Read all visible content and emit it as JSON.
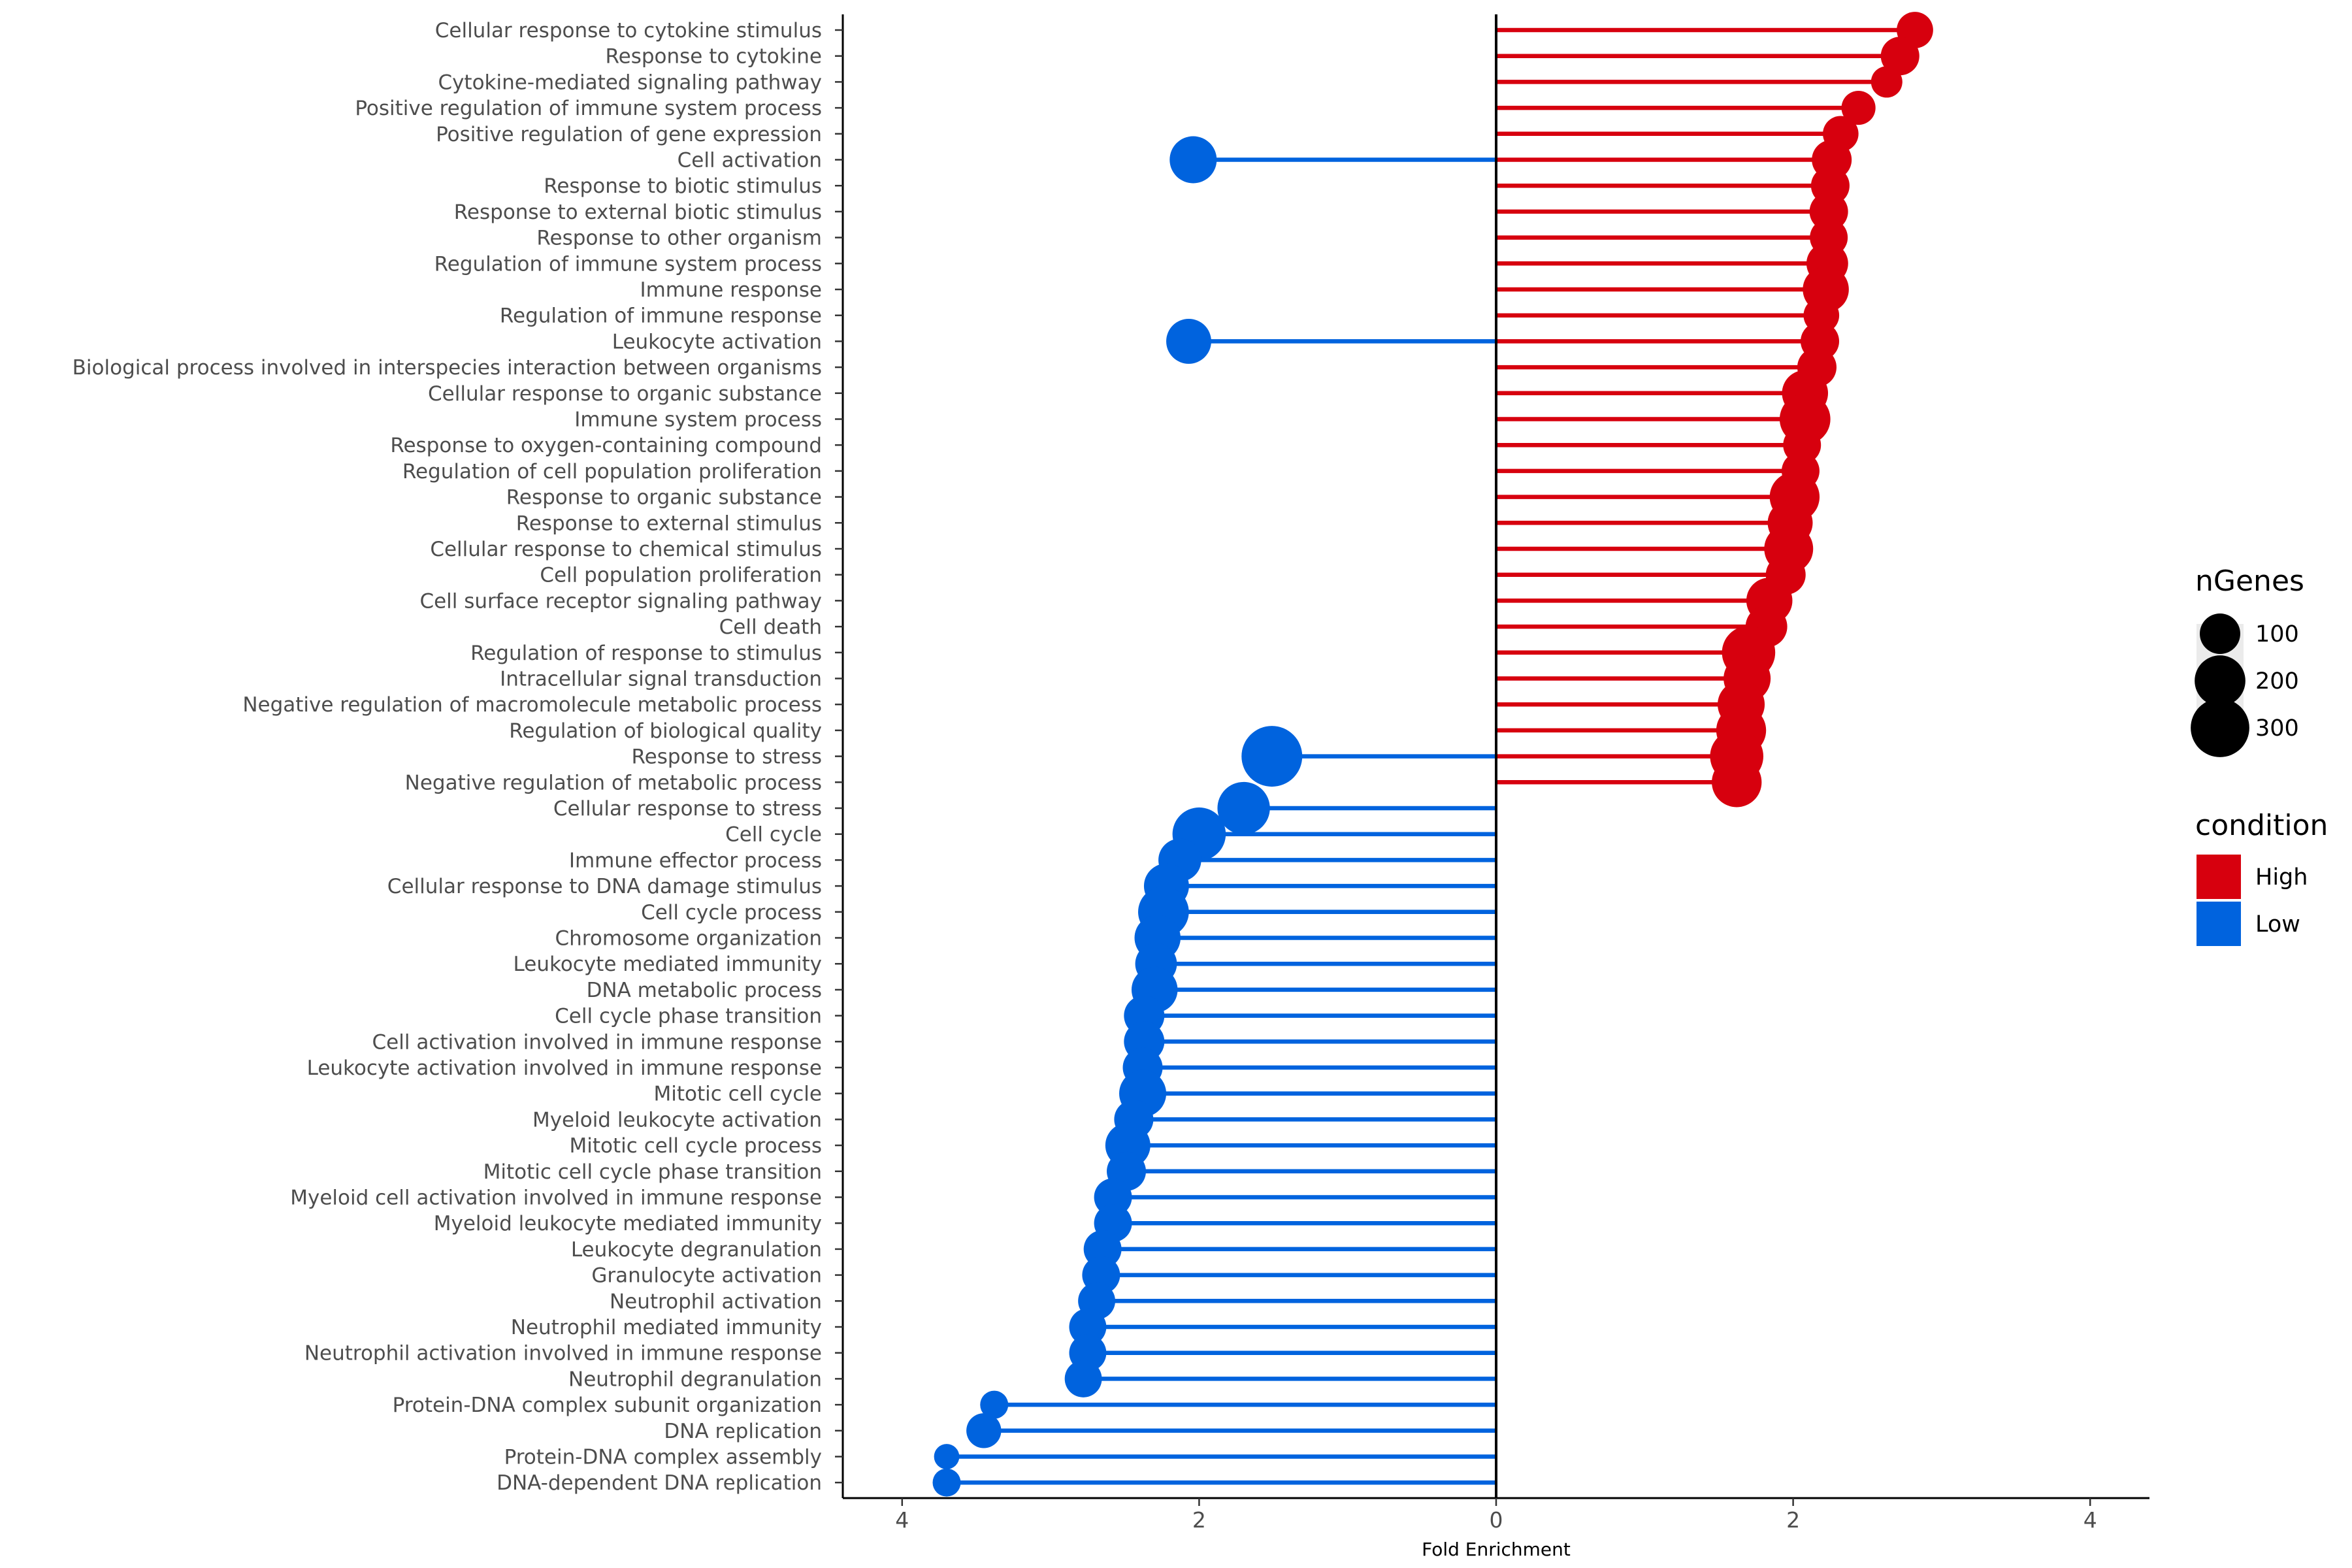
{
  "chart_data": {
    "type": "lollipop",
    "title": "",
    "xlabel": "Fold Enrichment",
    "ylabel": "",
    "xlim": [
      -4.4,
      4.4
    ],
    "x_ticks": [
      -4,
      -2,
      0,
      2,
      4
    ],
    "x_tick_labels": [
      "4",
      "2",
      "0",
      "2",
      "4"
    ],
    "grid": false,
    "colors": {
      "High": "#D7000E",
      "Low": "#0063DE"
    },
    "legend": {
      "size": {
        "title": "nGenes",
        "entries": [
          100,
          200,
          300
        ],
        "labels": [
          "100",
          "200",
          "300"
        ]
      },
      "color": {
        "title": "condition",
        "entries": [
          "High",
          "Low"
        ]
      },
      "position": "right"
    },
    "points": [
      {
        "term": "Cellular response to cytokine stimulus",
        "high": 2.82,
        "high_n": 70
      },
      {
        "term": "Response to cytokine",
        "high": 2.72,
        "high_n": 85
      },
      {
        "term": "Cytokine-mediated signaling pathway",
        "high": 2.63,
        "high_n": 40
      },
      {
        "term": "Positive regulation of immune system process",
        "high": 2.44,
        "high_n": 55
      },
      {
        "term": "Positive regulation of gene expression",
        "high": 2.32,
        "high_n": 65
      },
      {
        "term": "Cell activation",
        "high": 2.26,
        "high_n": 95,
        "low": -2.04,
        "low_n": 160
      },
      {
        "term": "Response to biotic stimulus",
        "high": 2.25,
        "high_n": 85
      },
      {
        "term": "Response to external biotic stimulus",
        "high": 2.24,
        "high_n": 85
      },
      {
        "term": "Response to other organism",
        "high": 2.24,
        "high_n": 80
      },
      {
        "term": "Regulation of immune system process",
        "high": 2.23,
        "high_n": 110
      },
      {
        "term": "Immune response",
        "high": 2.22,
        "high_n": 150
      },
      {
        "term": "Regulation of immune response",
        "high": 2.19,
        "high_n": 65
      },
      {
        "term": "Leukocyte activation",
        "high": 2.18,
        "high_n": 85,
        "low": -2.07,
        "low_n": 140
      },
      {
        "term": "Biological process involved in interspecies interaction between organisms",
        "high": 2.16,
        "high_n": 90
      },
      {
        "term": "Cellular response to organic substance",
        "high": 2.08,
        "high_n": 150
      },
      {
        "term": "Immune system process",
        "high": 2.08,
        "high_n": 200
      },
      {
        "term": "Response to oxygen-containing compound",
        "high": 2.06,
        "high_n": 80
      },
      {
        "term": "Regulation of cell population proliferation",
        "high": 2.05,
        "high_n": 80
      },
      {
        "term": "Response to organic substance",
        "high": 2.01,
        "high_n": 190
      },
      {
        "term": "Response to external stimulus",
        "high": 1.98,
        "high_n": 140
      },
      {
        "term": "Cellular response to chemical stimulus",
        "high": 1.97,
        "high_n": 180
      },
      {
        "term": "Cell population proliferation",
        "high": 1.95,
        "high_n": 95
      },
      {
        "term": "Cell surface receptor signaling pathway",
        "high": 1.84,
        "high_n": 150
      },
      {
        "term": "Cell death",
        "high": 1.82,
        "high_n": 110
      },
      {
        "term": "Regulation of response to stimulus",
        "high": 1.7,
        "high_n": 230
      },
      {
        "term": "Intracellular signal transduction",
        "high": 1.69,
        "high_n": 160
      },
      {
        "term": "Negative regulation of macromolecule metabolic process",
        "high": 1.65,
        "high_n": 160
      },
      {
        "term": "Regulation of biological quality",
        "high": 1.65,
        "high_n": 190
      },
      {
        "term": "Response to stress",
        "high": 1.62,
        "high_n": 230,
        "low": -1.51,
        "low_n": 330
      },
      {
        "term": "Negative regulation of metabolic process",
        "high": 1.62,
        "high_n": 190
      },
      {
        "term": "Cellular response to stress",
        "low": -1.7,
        "low_n": 220
      },
      {
        "term": "Cell cycle",
        "low": -2.0,
        "low_n": 230
      },
      {
        "term": "Immune effector process",
        "low": -2.13,
        "low_n": 120
      },
      {
        "term": "Cellular response to DNA damage stimulus",
        "low": -2.22,
        "low_n": 140
      },
      {
        "term": "Cell cycle process",
        "low": -2.24,
        "low_n": 200
      },
      {
        "term": "Chromosome organization",
        "low": -2.28,
        "low_n": 150
      },
      {
        "term": "Leukocyte mediated immunity",
        "low": -2.29,
        "low_n": 110
      },
      {
        "term": "DNA metabolic process",
        "low": -2.3,
        "low_n": 150
      },
      {
        "term": "Cell cycle phase transition",
        "low": -2.37,
        "low_n": 100
      },
      {
        "term": "Cell activation involved in immune response",
        "low": -2.37,
        "low_n": 100
      },
      {
        "term": "Leukocyte activation involved in immune response",
        "low": -2.38,
        "low_n": 95
      },
      {
        "term": "Mitotic cell cycle",
        "low": -2.38,
        "low_n": 160
      },
      {
        "term": "Myeloid leukocyte activation",
        "low": -2.44,
        "low_n": 90
      },
      {
        "term": "Mitotic cell cycle process",
        "low": -2.48,
        "low_n": 140
      },
      {
        "term": "Mitotic cell cycle phase transition",
        "low": -2.49,
        "low_n": 90
      },
      {
        "term": "Myeloid cell activation involved in immune response",
        "low": -2.58,
        "low_n": 80
      },
      {
        "term": "Myeloid leukocyte mediated immunity",
        "low": -2.58,
        "low_n": 80
      },
      {
        "term": "Leukocyte degranulation",
        "low": -2.65,
        "low_n": 80
      },
      {
        "term": "Granulocyte activation",
        "low": -2.66,
        "low_n": 80
      },
      {
        "term": "Neutrophil activation",
        "low": -2.69,
        "low_n": 75
      },
      {
        "term": "Neutrophil mediated immunity",
        "low": -2.75,
        "low_n": 75
      },
      {
        "term": "Neutrophil activation involved in immune response",
        "low": -2.75,
        "low_n": 75
      },
      {
        "term": "Neutrophil degranulation",
        "low": -2.78,
        "low_n": 75
      },
      {
        "term": "Protein-DNA complex subunit organization",
        "low": -3.38,
        "low_n": 25
      },
      {
        "term": "DNA replication",
        "low": -3.45,
        "low_n": 60
      },
      {
        "term": "Protein-DNA complex assembly",
        "low": -3.7,
        "low_n": 15
      },
      {
        "term": "DNA-dependent DNA replication",
        "low": -3.7,
        "low_n": 25
      }
    ]
  }
}
